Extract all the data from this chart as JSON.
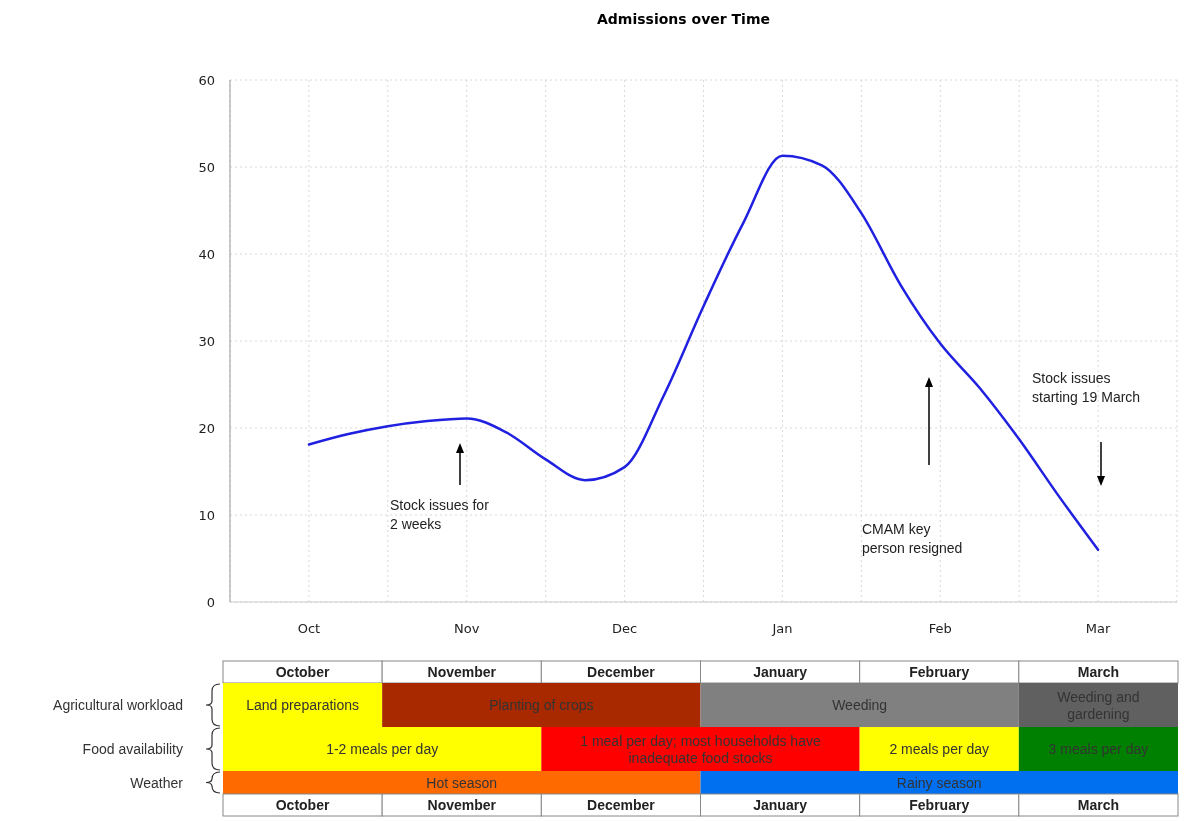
{
  "chart_data": [
    {
      "type": "line",
      "title": "Admissions over Time",
      "color": "#2020e0",
      "categories": [
        "Oct",
        null,
        null,
        null,
        "Nov",
        null,
        null,
        null,
        "Dec",
        null,
        null,
        null,
        "Jan",
        null,
        null,
        null,
        "Feb",
        null,
        null,
        null,
        "Mar"
      ],
      "values": [
        18.1,
        19.3,
        20.2,
        20.8,
        21.1,
        19.5,
        16.4,
        14,
        15.5,
        23.8,
        34,
        43.5,
        51.3,
        50.2,
        44.7,
        36.4,
        29.7,
        24.6,
        18.7,
        12.2,
        6
      ],
      "ylim": [
        0,
        60
      ],
      "yticks": [
        0,
        10,
        20,
        30,
        40,
        50,
        60
      ],
      "grid": true,
      "annotations": [
        "Stock issues for\n2 weeks",
        "CMAM key\nperson resigned",
        "Stock issues\nstarting 19 March"
      ]
    },
    {
      "type": "other",
      "categories": [
        "October",
        "November",
        "December",
        "January",
        "February",
        "March"
      ],
      "y_categories": [
        "Agricultural workload",
        "Food availability",
        "Weather"
      ],
      "annotations": [
        "Land preparations",
        "Planting of crops",
        "Weeding",
        "Weeding and gardening",
        "1-2 meals per day",
        "1 meal per day; most households have inadequate food stocks",
        "2 meals per day",
        "3 meals per day",
        "Hot season",
        "Rainy season"
      ]
    }
  ]
}
